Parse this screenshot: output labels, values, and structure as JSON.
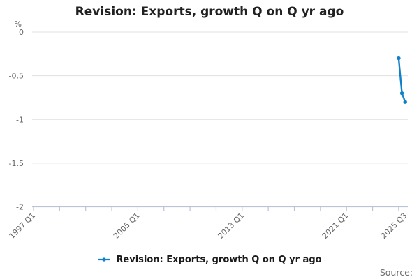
{
  "chart_data": {
    "type": "line",
    "title": "Revision: Exports, growth Q on Q yr ago",
    "unit_label": "%",
    "series": [
      {
        "name": "Revision: Exports, growth Q on Q yr ago",
        "x": [
          "2025 Q1",
          "2025 Q2",
          "2025 Q3"
        ],
        "values": [
          -0.3,
          -0.7,
          -0.8
        ]
      }
    ],
    "x_axis": {
      "start": "1997 Q1",
      "end": "2025 Q3",
      "labeled_ticks": [
        "1997 Q1",
        "2005 Q1",
        "2013 Q1",
        "2021 Q1",
        "2025 Q3"
      ],
      "minor_tick_every_years": 2,
      "tick_label_rotation_deg": -45
    },
    "y_axis": {
      "tick_labels": [
        "0",
        "-0.5",
        "-1",
        "-1.5",
        "-2"
      ],
      "tick_values": [
        0,
        -0.5,
        -1,
        -1.5,
        -2
      ],
      "min": -2,
      "max": 0
    },
    "grid": "horizontal",
    "legend_position": "bottom",
    "colors": {
      "line": "#1080c8",
      "grid": "#e0e0e0",
      "axis": "#b9c4da",
      "tick_text": "#666666",
      "title_text": "#212121"
    }
  },
  "legend": {
    "label": "Revision: Exports, growth Q on Q yr ago"
  },
  "footer": {
    "source_label": "Source:"
  }
}
